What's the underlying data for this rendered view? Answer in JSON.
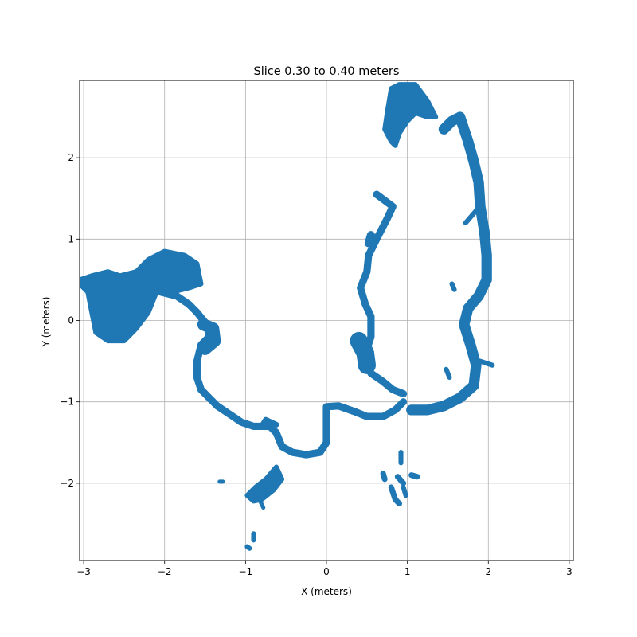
{
  "chart_data": {
    "type": "scatter",
    "title": "Slice 0.30 to 0.40 meters",
    "xlabel": "X (meters)",
    "ylabel": "Y (meters)",
    "xlim": [
      -3.05,
      3.05
    ],
    "ylim": [
      -2.95,
      2.95
    ],
    "xticks": [
      -3,
      -2,
      -1,
      0,
      1,
      2,
      3
    ],
    "yticks": [
      -2,
      -1,
      0,
      1,
      2
    ],
    "xtick_labels": [
      "−3",
      "−2",
      "−1",
      "0",
      "1",
      "2",
      "3"
    ],
    "ytick_labels": [
      "−2",
      "−1",
      "0",
      "1",
      "2"
    ],
    "grid": true,
    "color": "#1f77b4",
    "series": [
      {
        "segments": [
          {
            "shape": "blob",
            "points": [
              [
                -3.05,
                0.5
              ],
              [
                -2.9,
                0.55
              ],
              [
                -2.7,
                0.6
              ],
              [
                -2.55,
                0.55
              ],
              [
                -2.35,
                0.6
              ],
              [
                -2.2,
                0.75
              ],
              [
                -2.0,
                0.85
              ],
              [
                -1.75,
                0.8
              ],
              [
                -1.6,
                0.7
              ],
              [
                -1.55,
                0.45
              ],
              [
                -1.7,
                0.4
              ],
              [
                -1.9,
                0.35
              ],
              [
                -2.1,
                0.35
              ],
              [
                -2.2,
                0.1
              ],
              [
                -2.35,
                -0.1
              ],
              [
                -2.5,
                -0.25
              ],
              [
                -2.7,
                -0.25
              ],
              [
                -2.85,
                -0.15
              ],
              [
                -2.9,
                0.1
              ],
              [
                -2.95,
                0.35
              ],
              [
                -3.05,
                0.45
              ]
            ]
          },
          {
            "shape": "path",
            "width": 0.09,
            "points": [
              [
                -2.05,
                0.35
              ],
              [
                -1.85,
                0.3
              ],
              [
                -1.7,
                0.2
              ],
              [
                -1.6,
                0.1
              ],
              [
                -1.52,
                0.0
              ],
              [
                -1.45,
                -0.08
              ],
              [
                -1.45,
                -0.2
              ],
              [
                -1.55,
                -0.3
              ],
              [
                -1.6,
                -0.5
              ],
              [
                -1.6,
                -0.7
              ],
              [
                -1.55,
                -0.85
              ],
              [
                -1.45,
                -0.95
              ],
              [
                -1.35,
                -1.05
              ],
              [
                -1.2,
                -1.15
              ],
              [
                -1.05,
                -1.25
              ],
              [
                -0.9,
                -1.3
              ],
              [
                -0.7,
                -1.3
              ],
              [
                -0.62,
                -1.38
              ],
              [
                -0.55,
                -1.55
              ],
              [
                -0.42,
                -1.62
              ],
              [
                -0.25,
                -1.65
              ],
              [
                -0.08,
                -1.62
              ],
              [
                0.0,
                -1.5
              ],
              [
                0.0,
                -1.2
              ],
              [
                0.0,
                -1.06
              ],
              [
                0.15,
                -1.05
              ],
              [
                0.35,
                -1.12
              ],
              [
                0.5,
                -1.18
              ],
              [
                0.7,
                -1.18
              ],
              [
                0.85,
                -1.1
              ],
              [
                0.95,
                -1.0
              ]
            ]
          },
          {
            "shape": "path",
            "width": 0.15,
            "points": [
              [
                -1.52,
                -0.05
              ],
              [
                -1.4,
                -0.1
              ],
              [
                -1.38,
                -0.25
              ],
              [
                -1.5,
                -0.35
              ]
            ]
          },
          {
            "shape": "path",
            "width": 0.07,
            "points": [
              [
                -0.8,
                -1.3
              ],
              [
                -0.75,
                -1.22
              ],
              [
                -0.62,
                -1.28
              ]
            ]
          },
          {
            "shape": "path",
            "width": 0.09,
            "points": [
              [
                0.62,
                1.55
              ],
              [
                0.82,
                1.4
              ],
              [
                0.75,
                1.25
              ],
              [
                0.62,
                1.0
              ],
              [
                0.52,
                0.8
              ],
              [
                0.5,
                0.6
              ],
              [
                0.42,
                0.4
              ],
              [
                0.48,
                0.2
              ],
              [
                0.55,
                0.05
              ],
              [
                0.55,
                -0.2
              ],
              [
                0.5,
                -0.35
              ],
              [
                0.5,
                -0.5
              ],
              [
                0.55,
                -0.65
              ],
              [
                0.7,
                -0.75
              ],
              [
                0.82,
                -0.85
              ],
              [
                0.95,
                -0.9
              ]
            ]
          },
          {
            "shape": "path",
            "width": 0.22,
            "points": [
              [
                0.4,
                -0.25
              ],
              [
                0.48,
                -0.4
              ],
              [
                0.5,
                -0.55
              ]
            ]
          },
          {
            "shape": "path",
            "width": 0.1,
            "points": [
              [
                0.52,
                0.95
              ],
              [
                0.55,
                1.05
              ]
            ]
          },
          {
            "shape": "blob",
            "points": [
              [
                0.75,
                2.55
              ],
              [
                0.8,
                2.85
              ],
              [
                0.9,
                2.9
              ],
              [
                1.1,
                2.9
              ],
              [
                1.25,
                2.7
              ],
              [
                1.35,
                2.5
              ],
              [
                1.25,
                2.5
              ],
              [
                1.1,
                2.55
              ],
              [
                1.0,
                2.45
              ],
              [
                0.9,
                2.3
              ],
              [
                0.85,
                2.15
              ],
              [
                0.8,
                2.2
              ],
              [
                0.72,
                2.35
              ]
            ]
          },
          {
            "shape": "path",
            "width": 0.13,
            "points": [
              [
                1.45,
                2.35
              ],
              [
                1.55,
                2.45
              ],
              [
                1.65,
                2.5
              ],
              [
                1.75,
                2.2
              ],
              [
                1.82,
                1.95
              ],
              [
                1.88,
                1.7
              ],
              [
                1.9,
                1.4
              ],
              [
                1.95,
                1.1
              ],
              [
                1.98,
                0.8
              ],
              [
                1.98,
                0.5
              ],
              [
                1.88,
                0.3
              ],
              [
                1.75,
                0.15
              ],
              [
                1.7,
                -0.05
              ],
              [
                1.78,
                -0.3
              ],
              [
                1.85,
                -0.55
              ],
              [
                1.82,
                -0.8
              ],
              [
                1.65,
                -0.95
              ],
              [
                1.45,
                -1.05
              ],
              [
                1.25,
                -1.1
              ],
              [
                1.05,
                -1.1
              ]
            ]
          },
          {
            "shape": "path",
            "width": 0.06,
            "points": [
              [
                1.85,
                1.35
              ],
              [
                1.72,
                1.2
              ]
            ]
          },
          {
            "shape": "path",
            "width": 0.06,
            "points": [
              [
                1.55,
                0.45
              ],
              [
                1.58,
                0.38
              ]
            ]
          },
          {
            "shape": "path",
            "width": 0.06,
            "points": [
              [
                1.48,
                -0.6
              ],
              [
                1.52,
                -0.7
              ]
            ]
          },
          {
            "shape": "path",
            "width": 0.06,
            "points": [
              [
                1.9,
                -0.5
              ],
              [
                2.05,
                -0.55
              ]
            ]
          },
          {
            "shape": "blob",
            "points": [
              [
                -0.98,
                -2.15
              ],
              [
                -0.88,
                -2.05
              ],
              [
                -0.75,
                -1.95
              ],
              [
                -0.62,
                -1.8
              ],
              [
                -0.55,
                -1.95
              ],
              [
                -0.65,
                -2.08
              ],
              [
                -0.8,
                -2.2
              ],
              [
                -0.9,
                -2.22
              ]
            ]
          },
          {
            "shape": "path",
            "width": 0.05,
            "points": [
              [
                -0.82,
                -2.22
              ],
              [
                -0.78,
                -2.3
              ]
            ]
          },
          {
            "shape": "path",
            "width": 0.05,
            "points": [
              [
                -1.32,
                -1.98
              ],
              [
                -1.28,
                -1.98
              ]
            ]
          },
          {
            "shape": "path",
            "width": 0.06,
            "points": [
              [
                -0.9,
                -2.62
              ],
              [
                -0.9,
                -2.7
              ]
            ]
          },
          {
            "shape": "path",
            "width": 0.06,
            "points": [
              [
                -0.98,
                -2.78
              ],
              [
                -0.95,
                -2.8
              ]
            ]
          },
          {
            "shape": "path",
            "width": 0.07,
            "points": [
              [
                0.7,
                -1.88
              ],
              [
                0.72,
                -1.95
              ]
            ]
          },
          {
            "shape": "path",
            "width": 0.07,
            "points": [
              [
                0.8,
                -2.05
              ],
              [
                0.85,
                -2.2
              ],
              [
                0.9,
                -2.25
              ]
            ]
          },
          {
            "shape": "path",
            "width": 0.07,
            "points": [
              [
                0.88,
                -1.92
              ],
              [
                0.95,
                -2.0
              ]
            ]
          },
          {
            "shape": "path",
            "width": 0.06,
            "points": [
              [
                0.92,
                -1.62
              ],
              [
                0.92,
                -1.75
              ]
            ]
          },
          {
            "shape": "path",
            "width": 0.07,
            "points": [
              [
                1.05,
                -1.9
              ],
              [
                1.12,
                -1.92
              ]
            ]
          },
          {
            "shape": "path",
            "width": 0.06,
            "points": [
              [
                0.95,
                -2.05
              ],
              [
                0.98,
                -2.15
              ]
            ]
          }
        ]
      }
    ]
  }
}
